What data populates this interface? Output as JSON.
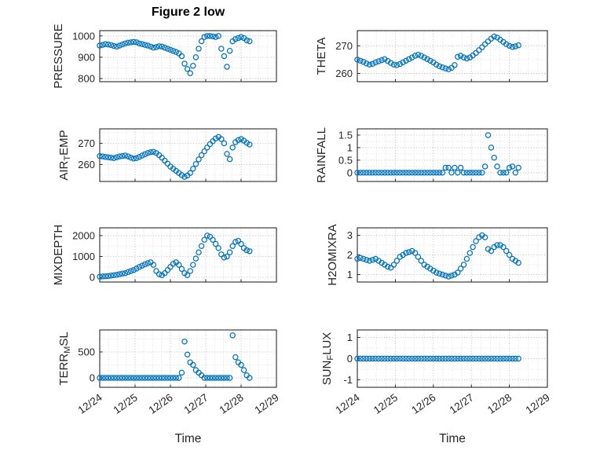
{
  "figure_style": {
    "background": "#ffffff",
    "marker_color": "#0072BD",
    "axis_color": "#151515",
    "text_color": "#262626",
    "grid_color": "#aaaaaa",
    "minor_grid_color": "#d6d6d6"
  },
  "chart_data": {
    "type": "scatter",
    "title": "Figure 2 low",
    "xlabel": "Time",
    "legend": "none",
    "grid": "on, dotted, with minor grid",
    "marker": "open circle",
    "x_tick_labels": [
      "12/24",
      "12/25",
      "12/26",
      "12/27",
      "12/28",
      "12/29"
    ],
    "xlim": [
      0,
      5
    ],
    "x_days": [
      0,
      0.08,
      0.16,
      0.24,
      0.32,
      0.4,
      0.48,
      0.56,
      0.64,
      0.72,
      0.8,
      0.88,
      0.96,
      1.04,
      1.12,
      1.2,
      1.28,
      1.36,
      1.44,
      1.52,
      1.6,
      1.68,
      1.76,
      1.84,
      1.92,
      2,
      2.08,
      2.16,
      2.24,
      2.32,
      2.4,
      2.48,
      2.56,
      2.64,
      2.72,
      2.8,
      2.88,
      2.96,
      3.04,
      3.12,
      3.2,
      3.28,
      3.36,
      3.44,
      3.52,
      3.6,
      3.68,
      3.76,
      3.84,
      3.92,
      4,
      4.08,
      4.16,
      4.24
    ],
    "plots": [
      {
        "id": "pressure",
        "ylabel": "PRESSURE",
        "ylabel_parts": [
          {
            "t": "PRESSURE"
          }
        ],
        "yticks": [
          800,
          900,
          1000
        ],
        "ylim": [
          785,
          1025
        ],
        "values": [
          955,
          958,
          962,
          960,
          957,
          953,
          950,
          955,
          960,
          965,
          968,
          970,
          972,
          970,
          965,
          962,
          958,
          955,
          950,
          945,
          948,
          952,
          950,
          945,
          940,
          935,
          930,
          925,
          918,
          905,
          870,
          845,
          825,
          860,
          900,
          940,
          975,
          995,
          1000,
          1000,
          998,
          995,
          1000,
          940,
          905,
          855,
          930,
          975,
          985,
          990,
          995,
          990,
          980,
          975
        ]
      },
      {
        "id": "theta",
        "ylabel": "THETA",
        "ylabel_parts": [
          {
            "t": "THETA"
          }
        ],
        "yticks": [
          260,
          270
        ],
        "ylim": [
          257,
          275.5
        ],
        "values": [
          265,
          264.6,
          264.2,
          263.6,
          263.2,
          263.5,
          264,
          264.4,
          264.8,
          265.2,
          264.5,
          263.8,
          263.2,
          263,
          263.4,
          264,
          264.6,
          265.2,
          265.8,
          266.4,
          266.8,
          266.4,
          265.8,
          265.2,
          264.6,
          264,
          263.2,
          262.6,
          262.2,
          261.8,
          261.5,
          262,
          263,
          266,
          266.4,
          265.8,
          265.4,
          265.8,
          266.5,
          267.4,
          268.4,
          269.5,
          270.6,
          271.6,
          272.6,
          273.4,
          273,
          272.2,
          271.4,
          270.6,
          270,
          269.6,
          269.8,
          270.2
        ]
      },
      {
        "id": "air-temp",
        "ylabel": "AIR_TEMP",
        "ylabel_parts": [
          {
            "t": "AIR"
          },
          {
            "t": "T",
            "sub": true
          },
          {
            "t": "EMP"
          }
        ],
        "yticks": [
          260,
          270
        ],
        "ylim": [
          252,
          276.8
        ],
        "values": [
          264,
          263.8,
          263.6,
          263.4,
          263.2,
          263,
          263.4,
          263.8,
          264,
          264.2,
          263.8,
          263.2,
          262.8,
          263,
          263.6,
          264.2,
          264.8,
          265.4,
          265.8,
          266,
          265.4,
          264.4,
          263.2,
          261.8,
          260.4,
          259,
          258,
          257,
          256,
          255,
          254.2,
          254.8,
          256,
          258,
          260.2,
          262.4,
          264.4,
          266.2,
          268,
          269.6,
          271,
          272.2,
          273,
          272,
          270,
          265,
          262.5,
          268,
          270.5,
          271.5,
          272,
          271.2,
          270.2,
          269.4
        ]
      },
      {
        "id": "rainfall",
        "ylabel": "RAINFALL",
        "ylabel_parts": [
          {
            "t": "RAINFALL"
          }
        ],
        "yticks": [
          0,
          0.5,
          1,
          1.5
        ],
        "ylim": [
          -0.35,
          1.75
        ],
        "values": [
          0,
          0,
          0,
          0,
          0,
          0,
          0,
          0,
          0,
          0,
          0,
          0,
          0,
          0,
          0,
          0,
          0,
          0,
          0,
          0,
          0,
          0,
          0,
          0,
          0,
          0,
          0,
          0,
          0,
          0.2,
          0.2,
          0,
          0.2,
          0,
          0.2,
          0,
          0,
          0,
          0,
          0,
          0,
          0,
          0.25,
          1.5,
          1,
          0.6,
          0.25,
          0,
          0,
          0,
          0.2,
          0.25,
          0,
          0.2
        ]
      },
      {
        "id": "mixdepth",
        "ylabel": "MIXDEPTH",
        "ylabel_parts": [
          {
            "t": "MIXDEPTH"
          }
        ],
        "yticks": [
          0,
          1000,
          2000
        ],
        "ylim": [
          -226,
          2374
        ],
        "values": [
          30,
          40,
          50,
          60,
          80,
          100,
          120,
          150,
          180,
          200,
          250,
          300,
          350,
          420,
          500,
          560,
          620,
          680,
          720,
          600,
          300,
          150,
          100,
          200,
          350,
          500,
          650,
          720,
          600,
          400,
          200,
          100,
          300,
          600,
          900,
          1200,
          1500,
          1800,
          2000,
          1950,
          1800,
          1600,
          1400,
          1100,
          950,
          1000,
          1200,
          1500,
          1700,
          1750,
          1600,
          1400,
          1300,
          1250
        ]
      },
      {
        "id": "h2omixra",
        "ylabel": "H2OMIXRA",
        "ylabel_parts": [
          {
            "t": "H2OMIXRA"
          }
        ],
        "yticks": [
          1,
          2,
          3
        ],
        "ylim": [
          0.62,
          3.38
        ],
        "values": [
          1.8,
          1.85,
          1.8,
          1.75,
          1.7,
          1.75,
          1.8,
          1.7,
          1.6,
          1.5,
          1.4,
          1.35,
          1.5,
          1.7,
          1.9,
          2,
          2.1,
          2.15,
          2.2,
          2.1,
          1.9,
          1.7,
          1.5,
          1.4,
          1.3,
          1.2,
          1.1,
          1.05,
          1,
          0.95,
          0.9,
          0.95,
          1,
          1.1,
          1.3,
          1.5,
          1.8,
          2.1,
          2.4,
          2.7,
          2.9,
          3,
          2.9,
          2.3,
          2.2,
          2.4,
          2.5,
          2.5,
          2.4,
          2.2,
          2,
          1.8,
          1.7,
          1.6
        ]
      },
      {
        "id": "terr-msl",
        "ylabel": "TERR_MSL",
        "ylabel_parts": [
          {
            "t": "TERR"
          },
          {
            "t": "M",
            "sub": true
          },
          {
            "t": "SL"
          }
        ],
        "yticks": [
          0,
          500
        ],
        "ylim": [
          -182,
          924
        ],
        "values": [
          0,
          0,
          0,
          0,
          0,
          0,
          0,
          0,
          0,
          0,
          0,
          0,
          0,
          0,
          0,
          0,
          0,
          0,
          0,
          0,
          0,
          0,
          0,
          0,
          0,
          0,
          0,
          0,
          0,
          100,
          700,
          450,
          300,
          250,
          150,
          100,
          50,
          0,
          0,
          0,
          0,
          0,
          0,
          0,
          0,
          0,
          0,
          820,
          400,
          300,
          250,
          150,
          50,
          0
        ]
      },
      {
        "id": "sun-flux",
        "ylabel": "SUN_FLUX",
        "ylabel_parts": [
          {
            "t": "SUN"
          },
          {
            "t": "F",
            "sub": true
          },
          {
            "t": "LUX"
          }
        ],
        "yticks": [
          -1,
          0,
          1
        ],
        "ylim": [
          -1.35,
          1.35
        ],
        "values": [
          0,
          0,
          0,
          0,
          0,
          0,
          0,
          0,
          0,
          0,
          0,
          0,
          0,
          0,
          0,
          0,
          0,
          0,
          0,
          0,
          0,
          0,
          0,
          0,
          0,
          0,
          0,
          0,
          0,
          0,
          0,
          0,
          0,
          0,
          0,
          0,
          0,
          0,
          0,
          0,
          0,
          0,
          0,
          0,
          0,
          0,
          0,
          0,
          0,
          0,
          0,
          0,
          0,
          0
        ]
      }
    ]
  }
}
